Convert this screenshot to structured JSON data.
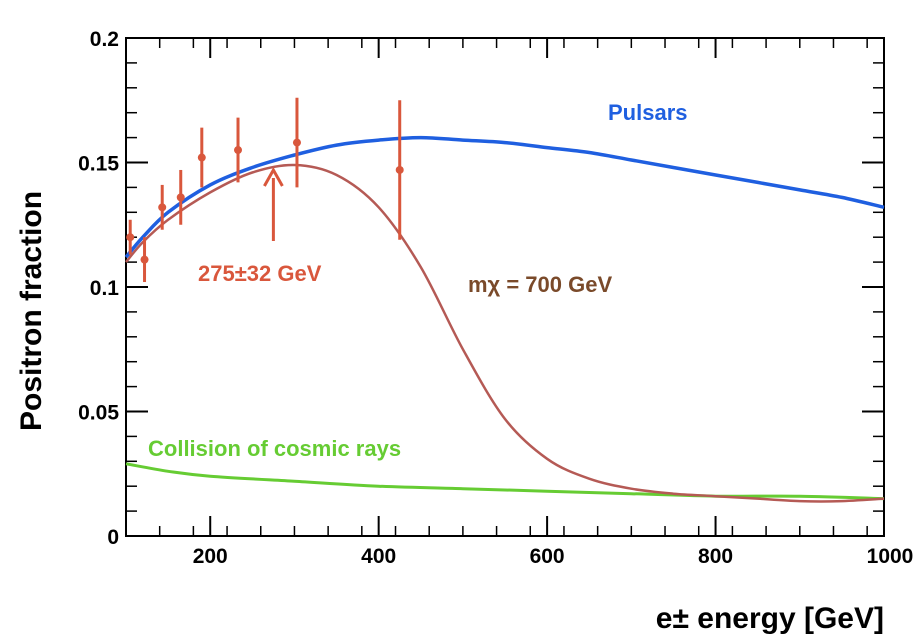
{
  "chart_data": {
    "type": "line",
    "xlabel": "e± energy [GeV]",
    "ylabel": "Positron fraction",
    "xlim": [
      100,
      1000
    ],
    "ylim": [
      0,
      0.2
    ],
    "x_ticks": [
      200,
      400,
      600,
      800,
      1000
    ],
    "x_tick_labels": [
      "200",
      "400",
      "600",
      "800",
      "1000"
    ],
    "y_ticks": [
      0,
      0.05,
      0.1,
      0.15,
      0.2
    ],
    "y_tick_labels": [
      "0",
      "0.05",
      "0.1",
      "0.15",
      "0.2"
    ],
    "grid": false,
    "colors": {
      "pulsars": "#1f5fe0",
      "dark_matter": "#b55a55",
      "cosmic_rays": "#66cc33",
      "data": "#d9573c",
      "peak_arrow": "#d9573c"
    },
    "series": [
      {
        "name": "Pulsars",
        "x": [
          100,
          120,
          150,
          200,
          250,
          300,
          350,
          400,
          450,
          500,
          550,
          600,
          650,
          700,
          750,
          800,
          850,
          900,
          950,
          1000
        ],
        "values": [
          0.112,
          0.12,
          0.13,
          0.141,
          0.148,
          0.153,
          0.157,
          0.159,
          0.16,
          0.159,
          0.158,
          0.156,
          0.154,
          0.151,
          0.148,
          0.145,
          0.142,
          0.139,
          0.136,
          0.132
        ]
      },
      {
        "name": "mχ = 700 GeV",
        "x": [
          100,
          120,
          150,
          200,
          250,
          300,
          350,
          400,
          450,
          500,
          550,
          600,
          650,
          700,
          750,
          800,
          850,
          900,
          950,
          1000
        ],
        "values": [
          0.11,
          0.118,
          0.127,
          0.138,
          0.146,
          0.149,
          0.145,
          0.132,
          0.108,
          0.075,
          0.047,
          0.031,
          0.023,
          0.019,
          0.017,
          0.016,
          0.015,
          0.014,
          0.014,
          0.015
        ]
      },
      {
        "name": "Collision of cosmic rays",
        "x": [
          100,
          150,
          200,
          300,
          400,
          500,
          600,
          700,
          800,
          900,
          1000
        ],
        "values": [
          0.029,
          0.026,
          0.024,
          0.022,
          0.02,
          0.019,
          0.018,
          0.017,
          0.016,
          0.016,
          0.015
        ]
      }
    ],
    "measurements": {
      "x": [
        105,
        122,
        143,
        165,
        190,
        233,
        303,
        425
      ],
      "y": [
        0.12,
        0.111,
        0.132,
        0.136,
        0.152,
        0.155,
        0.158,
        0.147
      ],
      "yerr": [
        0.007,
        0.009,
        0.009,
        0.011,
        0.012,
        0.013,
        0.018,
        0.028
      ]
    },
    "peak_marker": {
      "x": 275,
      "label": "275±32 GeV"
    },
    "annotations": {
      "pulsars": "Pulsars",
      "dark_matter": "mχ = 700 GeV",
      "cosmic_rays": "Collision of cosmic rays"
    }
  }
}
